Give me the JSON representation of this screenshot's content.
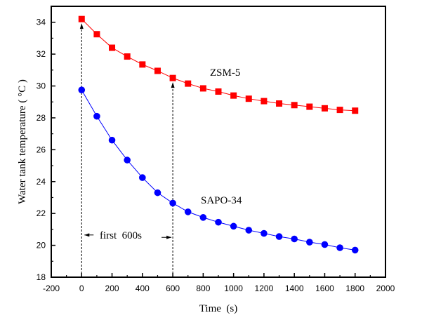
{
  "chart_data": {
    "type": "line",
    "xlabel": "Time  (s)",
    "ylabel": "Water tank temperature ( °C )",
    "xlim": [
      -200,
      2000
    ],
    "ylim": [
      18,
      35
    ],
    "xticks": [
      -200,
      0,
      200,
      400,
      600,
      800,
      1000,
      1200,
      1400,
      1600,
      1800,
      2000
    ],
    "yticks": [
      18,
      20,
      22,
      24,
      26,
      28,
      30,
      32,
      34
    ],
    "grid": false,
    "x": [
      0,
      100,
      200,
      300,
      400,
      500,
      600,
      700,
      800,
      900,
      1000,
      1100,
      1200,
      1300,
      1400,
      1500,
      1600,
      1700,
      1800
    ],
    "series": [
      {
        "name": "ZSM-5",
        "color": "#ff0000",
        "marker": "square",
        "values": [
          34.2,
          33.25,
          32.4,
          31.85,
          31.35,
          30.95,
          30.5,
          30.15,
          29.85,
          29.65,
          29.4,
          29.2,
          29.05,
          28.9,
          28.8,
          28.7,
          28.6,
          28.5,
          28.45
        ]
      },
      {
        "name": "SAPO-34",
        "color": "#0000ff",
        "marker": "circle",
        "values": [
          29.75,
          28.1,
          26.6,
          25.35,
          24.25,
          23.3,
          22.65,
          22.1,
          21.75,
          21.45,
          21.2,
          20.95,
          20.75,
          20.55,
          20.4,
          20.2,
          20.05,
          19.85,
          19.7
        ]
      }
    ],
    "annotations": {
      "interval_label": "first  600s",
      "interval_start": 0,
      "interval_end": 600
    }
  }
}
